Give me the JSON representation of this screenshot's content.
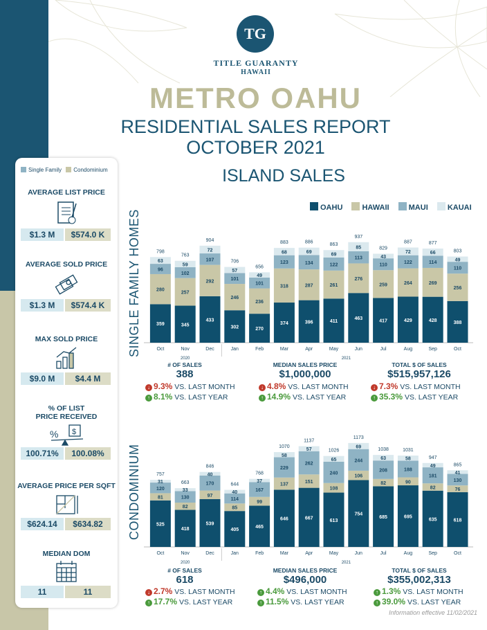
{
  "header": {
    "logo_text": "TG",
    "brand_line1": "TITLE GUARANTY",
    "brand_line2": "HAWAII",
    "title": "METRO OAHU",
    "subtitle1": "RESIDENTIAL SALES REPORT",
    "subtitle2": "OCTOBER 2021",
    "section": "ISLAND SALES"
  },
  "colors": {
    "oahu": "#0f4f6d",
    "hawaii": "#c9c7a7",
    "maui": "#8fb3c4",
    "kauai": "#dbe9ee",
    "title_tan": "#bdbb98"
  },
  "legend": {
    "oahu": "OAHU",
    "hawaii": "HAWAII",
    "maui": "MAUI",
    "kauai": "KAUAI"
  },
  "sidebar": {
    "legend_sf": "Single Family",
    "legend_condo": "Condominium",
    "metrics": [
      {
        "label": "AVERAGE LIST PRICE",
        "label2": "",
        "sf": "$1.3 M",
        "condo": "$574.0 K",
        "icon": "document-icon"
      },
      {
        "label": "AVERAGE SOLD PRICE",
        "label2": "",
        "sf": "$1.3 M",
        "condo": "$574.4 K",
        "icon": "money-icon"
      },
      {
        "label": "MAX SOLD PRICE",
        "label2": "",
        "sf": "$9.0 M",
        "condo": "$4.4 M",
        "icon": "bar-growth-icon"
      },
      {
        "label": "% OF LIST",
        "label2": "PRICE RECEIVED",
        "sf": "100.71%",
        "condo": "100.08%",
        "icon": "scale-icon"
      },
      {
        "label": "AVERAGE PRICE PER SQFT",
        "label2": "",
        "sf": "$624.14",
        "condo": "$634.82",
        "icon": "floorplan-icon"
      },
      {
        "label": "MEDIAN DOM",
        "label2": "",
        "sf": "11",
        "condo": "11",
        "icon": "calendar-icon"
      }
    ]
  },
  "sf": {
    "label": "SINGLE FAMILY HOMES",
    "stats": {
      "sales_title": "# OF SALES",
      "sales_value": "388",
      "sales_month_pct": "9.3%",
      "sales_month_text": "VS. LAST MONTH",
      "sales_year_pct": "8.1%",
      "sales_year_text": "VS. LAST YEAR",
      "median_title": "MEDIAN SALES PRICE",
      "median_value": "$1,000,000",
      "median_month_pct": "4.8%",
      "median_month_text": "VS. LAST MONTH",
      "median_year_pct": "14.9%",
      "median_year_text": "VS. LAST YEAR",
      "total_title": "TOTAL $ OF SALES",
      "total_value": "$515,957,126",
      "total_month_pct": "7.3%",
      "total_month_text": "VS. LAST MONTH",
      "total_year_pct": "35.3%",
      "total_year_text": "VS. LAST YEAR"
    }
  },
  "condo": {
    "label": "CONDOMINIUM",
    "stats": {
      "sales_title": "# OF SALES",
      "sales_value": "618",
      "sales_month_pct": "2.7%",
      "sales_month_text": "VS. LAST MONTH",
      "sales_year_pct": "17.7%",
      "sales_year_text": "VS. LAST YEAR",
      "median_title": "MEDIAN SALES PRICE",
      "median_value": "$496,000",
      "median_month_pct": "4.4%",
      "median_month_text": "VS. LAST MONTH",
      "median_year_pct": "11.5%",
      "median_year_text": "VS. LAST YEAR",
      "total_title": "TOTAL $ OF SALES",
      "total_value": "$355,002,313",
      "total_month_pct": "1.3%",
      "total_month_text": "VS. LAST MONTH",
      "total_year_pct": "39.0%",
      "total_year_text": "VS. LAST YEAR"
    }
  },
  "footer": {
    "note": "Information effective 11/02/2021"
  },
  "chart_data": [
    {
      "type": "bar",
      "stacked": true,
      "title": "SINGLE FAMILY HOMES",
      "categories": [
        "Oct",
        "Nov",
        "Dec",
        "Jan",
        "Feb",
        "Mar",
        "Apr",
        "May",
        "Jun",
        "Jul",
        "Aug",
        "Sep",
        "Oct"
      ],
      "year_groups": [
        {
          "label": "2020",
          "from": 0,
          "to": 2
        },
        {
          "label": "2021",
          "from": 3,
          "to": 12
        }
      ],
      "totals": [
        798,
        763,
        904,
        706,
        656,
        883,
        886,
        863,
        937,
        829,
        887,
        877,
        803
      ],
      "series": [
        {
          "name": "OAHU",
          "values": [
            359,
            345,
            433,
            302,
            270,
            374,
            396,
            411,
            463,
            417,
            429,
            428,
            388
          ]
        },
        {
          "name": "HAWAII",
          "values": [
            280,
            257,
            292,
            246,
            236,
            318,
            287,
            261,
            276,
            259,
            264,
            269,
            256
          ]
        },
        {
          "name": "MAUI",
          "values": [
            96,
            102,
            107,
            101,
            101,
            123,
            134,
            122,
            113,
            110,
            122,
            114,
            110
          ]
        },
        {
          "name": "KAUAI",
          "values": [
            63,
            59,
            72,
            57,
            49,
            68,
            69,
            69,
            85,
            43,
            72,
            66,
            49
          ]
        }
      ],
      "ylim": [
        0,
        1000
      ],
      "legend": "top-right"
    },
    {
      "type": "bar",
      "stacked": true,
      "title": "CONDOMINIUM",
      "categories": [
        "Oct",
        "Nov",
        "Dec",
        "Jan",
        "Feb",
        "Mar",
        "Apr",
        "May",
        "Jun",
        "Jul",
        "Aug",
        "Sep",
        "Oct"
      ],
      "year_groups": [
        {
          "label": "2020",
          "from": 0,
          "to": 2
        },
        {
          "label": "2021",
          "from": 3,
          "to": 12
        }
      ],
      "totals": [
        757,
        663,
        846,
        644,
        768,
        1070,
        1137,
        1026,
        1173,
        1038,
        1031,
        947,
        865
      ],
      "series": [
        {
          "name": "OAHU",
          "values": [
            525,
            418,
            539,
            405,
            465,
            646,
            667,
            613,
            754,
            685,
            695,
            635,
            618
          ]
        },
        {
          "name": "HAWAII",
          "values": [
            81,
            82,
            97,
            85,
            99,
            137,
            151,
            108,
            106,
            82,
            90,
            82,
            76
          ]
        },
        {
          "name": "MAUI",
          "values": [
            120,
            130,
            170,
            114,
            167,
            229,
            262,
            240,
            244,
            208,
            188,
            181,
            130
          ]
        },
        {
          "name": "KAUAI",
          "values": [
            31,
            33,
            40,
            40,
            37,
            58,
            57,
            65,
            69,
            63,
            58,
            49,
            41
          ]
        }
      ],
      "ylim": [
        0,
        1200
      ],
      "legend": "top-right"
    }
  ]
}
